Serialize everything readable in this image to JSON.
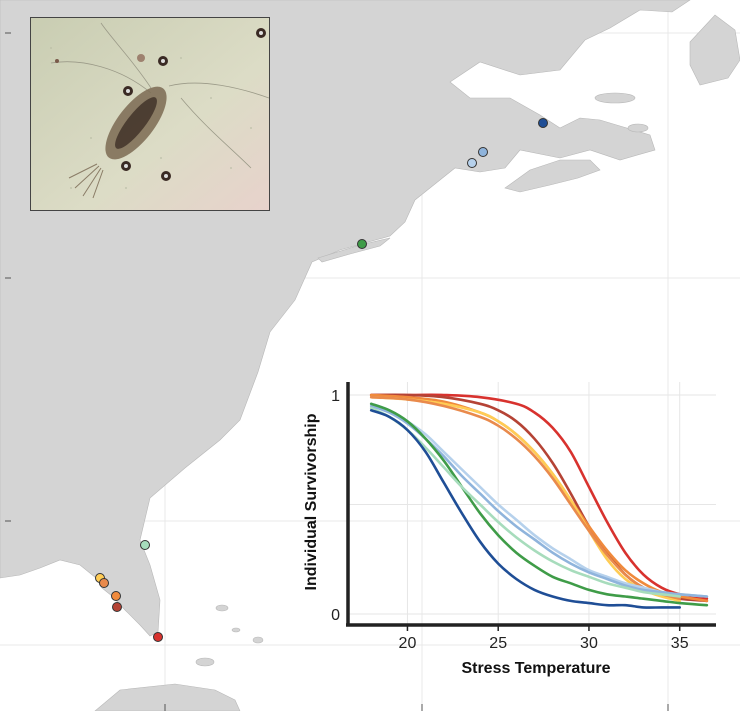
{
  "inset_photo": {
    "subject": "copepod"
  },
  "sites": [
    {
      "color": "#1f4e96"
    },
    {
      "color": "#8fb4dc"
    },
    {
      "color": "#b6d1ec"
    },
    {
      "color": "#3f9c48"
    },
    {
      "color": "#a7dcbc"
    },
    {
      "color": "#ffcc55"
    },
    {
      "color": "#e98a4c"
    },
    {
      "color": "#f08a3c"
    },
    {
      "color": "#b54335"
    },
    {
      "color": "#d8322e"
    }
  ],
  "chart_data": {
    "type": "line",
    "xlabel": "Stress Temperature",
    "ylabel": "Individual Survivorship",
    "xlim": [
      17,
      37
    ],
    "ylim": [
      0,
      1
    ],
    "x_ticks": [
      "20",
      "25",
      "30",
      "35"
    ],
    "y_ticks": [
      "0",
      "1"
    ],
    "grid": true,
    "series": [
      {
        "color": "#d8322e",
        "x": [
          18,
          20,
          22,
          24,
          26,
          27,
          28,
          29,
          30,
          31,
          32,
          33,
          34,
          35,
          36.5
        ],
        "values": [
          1.0,
          1.0,
          1.0,
          0.99,
          0.96,
          0.92,
          0.85,
          0.74,
          0.58,
          0.42,
          0.28,
          0.18,
          0.12,
          0.09,
          0.07
        ]
      },
      {
        "color": "#b54335",
        "x": [
          18,
          20,
          22,
          24,
          25,
          26,
          27,
          28,
          29,
          30,
          31,
          32,
          33,
          34,
          35,
          36.5
        ],
        "values": [
          1.0,
          1.0,
          0.99,
          0.96,
          0.93,
          0.88,
          0.8,
          0.69,
          0.55,
          0.4,
          0.28,
          0.18,
          0.12,
          0.09,
          0.07,
          0.06
        ]
      },
      {
        "color": "#f08a3c",
        "x": [
          18,
          20,
          22,
          24,
          25,
          26,
          27,
          28,
          29,
          30,
          31,
          32,
          33,
          34,
          35,
          36.5
        ],
        "values": [
          1.0,
          0.99,
          0.97,
          0.92,
          0.88,
          0.82,
          0.74,
          0.64,
          0.52,
          0.4,
          0.29,
          0.2,
          0.14,
          0.1,
          0.08,
          0.06
        ]
      },
      {
        "color": "#ffcc55",
        "x": [
          18,
          20,
          22,
          24,
          25,
          26,
          27,
          28,
          29,
          30,
          31,
          32,
          33,
          34,
          35
        ],
        "values": [
          0.99,
          0.98,
          0.96,
          0.92,
          0.88,
          0.82,
          0.74,
          0.64,
          0.52,
          0.38,
          0.25,
          0.16,
          0.11,
          0.08,
          0.06
        ]
      },
      {
        "color": "#e98a4c",
        "x": [
          18,
          20,
          22,
          24,
          25,
          26,
          27,
          28,
          29,
          30,
          31,
          32,
          33,
          34,
          35
        ],
        "values": [
          0.99,
          0.98,
          0.95,
          0.9,
          0.86,
          0.8,
          0.72,
          0.62,
          0.5,
          0.38,
          0.27,
          0.18,
          0.12,
          0.09,
          0.07
        ]
      },
      {
        "color": "#b6d1ec",
        "x": [
          18,
          19,
          20,
          21,
          22,
          23,
          24,
          25,
          26,
          27,
          28,
          29,
          30,
          31,
          32,
          33,
          34,
          35,
          36.5
        ],
        "values": [
          0.96,
          0.93,
          0.88,
          0.82,
          0.74,
          0.66,
          0.58,
          0.5,
          0.43,
          0.36,
          0.3,
          0.25,
          0.2,
          0.17,
          0.14,
          0.12,
          0.1,
          0.09,
          0.08
        ]
      },
      {
        "color": "#8fb4dc",
        "x": [
          18,
          19,
          20,
          21,
          22,
          23,
          24,
          25,
          26,
          27,
          28,
          29,
          30,
          31,
          32,
          33,
          34,
          35,
          36.5
        ],
        "values": [
          0.95,
          0.92,
          0.87,
          0.8,
          0.72,
          0.63,
          0.55,
          0.47,
          0.4,
          0.34,
          0.28,
          0.23,
          0.19,
          0.16,
          0.13,
          0.11,
          0.1,
          0.09,
          0.08
        ]
      },
      {
        "color": "#3f9c48",
        "x": [
          18,
          19,
          20,
          21,
          22,
          23,
          24,
          25,
          26,
          27,
          28,
          29,
          30,
          31,
          32,
          33,
          34,
          35,
          36.5
        ],
        "values": [
          0.96,
          0.93,
          0.88,
          0.8,
          0.7,
          0.58,
          0.46,
          0.36,
          0.28,
          0.22,
          0.17,
          0.14,
          0.11,
          0.09,
          0.08,
          0.07,
          0.06,
          0.05,
          0.04
        ]
      },
      {
        "color": "#a7dcbc",
        "x": [
          18,
          19,
          20,
          21,
          22,
          23,
          24,
          25,
          26,
          27,
          28,
          29,
          30,
          31,
          32,
          33,
          34,
          35
        ],
        "values": [
          0.94,
          0.9,
          0.84,
          0.76,
          0.67,
          0.58,
          0.5,
          0.42,
          0.35,
          0.29,
          0.24,
          0.2,
          0.17,
          0.14,
          0.12,
          0.1,
          0.09,
          0.08
        ]
      },
      {
        "color": "#1f4e96",
        "x": [
          18,
          19,
          20,
          21,
          22,
          23,
          24,
          25,
          26,
          27,
          28,
          29,
          30,
          31,
          32,
          33,
          34,
          35
        ],
        "values": [
          0.93,
          0.9,
          0.84,
          0.74,
          0.6,
          0.46,
          0.33,
          0.23,
          0.16,
          0.11,
          0.08,
          0.06,
          0.05,
          0.04,
          0.04,
          0.03,
          0.03,
          0.03
        ]
      }
    ]
  }
}
